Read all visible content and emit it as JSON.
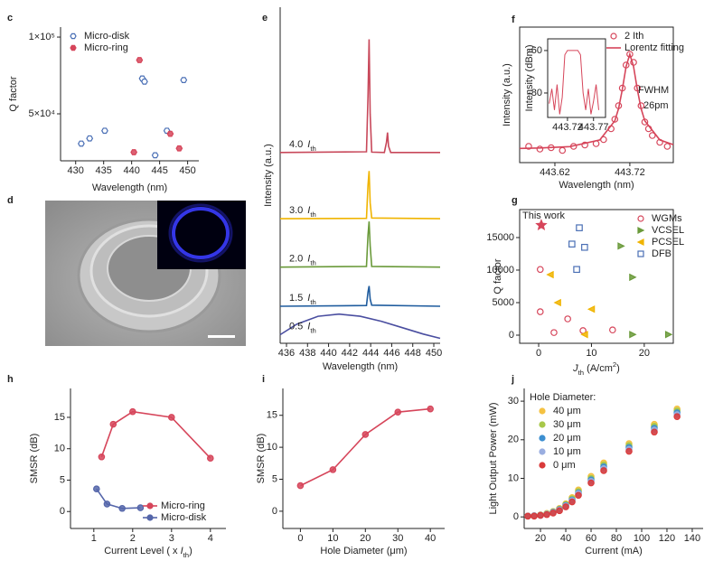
{
  "chart_data": [
    {
      "panel": "c",
      "type": "scatter",
      "xlabel": "Wavelength (nm)",
      "ylabel": "Q factor",
      "xlim": [
        427.3,
        452
      ],
      "xticks": [
        430,
        435,
        440,
        445,
        450
      ],
      "ylim": [
        19400,
        106500
      ],
      "yticks": [
        {
          "value": 50000,
          "label": "5×10⁴"
        },
        {
          "value": 100000,
          "label": "1×10⁵"
        }
      ],
      "legend": "upper left",
      "series": [
        {
          "name": "Micro-disk",
          "color": "#4a6fb5",
          "marker": "hexagon",
          "open": true,
          "x": [
            431,
            432.5,
            435.2,
            441.9,
            442.3,
            444.2,
            446.3,
            449.3
          ],
          "values": [
            30600,
            34000,
            39000,
            73000,
            71000,
            23000,
            39000,
            72000
          ]
        },
        {
          "name": "Micro-ring",
          "color": "#d6455a",
          "marker": "hexagon",
          "open": false,
          "x": [
            441.4,
            440.4,
            446.9,
            448.5
          ],
          "values": [
            85000,
            25000,
            37000,
            27500
          ]
        }
      ]
    },
    {
      "panel": "d",
      "type": "image"
    },
    {
      "panel": "e",
      "type": "line",
      "xlabel": "Wavelength (nm)",
      "ylabel": "Intensity (a.u.)",
      "xlim": [
        435.4,
        450.6
      ],
      "xticks": [
        436,
        438,
        440,
        442,
        444,
        446,
        448,
        450
      ],
      "ylim": [
        5.6,
        100
      ],
      "series_label_unit": [
        {
          "text": "I",
          "style": "italic"
        },
        {
          "text": "th",
          "style": "sub"
        }
      ],
      "series": [
        {
          "name": "4.0",
          "color": "#c8485a",
          "x": [
            435.4,
            443.6,
            443.75,
            443.85,
            443.95,
            444.1,
            445.3,
            445.5,
            445.6,
            445.7,
            445.9,
            450.6
          ],
          "values": [
            59.2,
            59.4,
            75,
            91,
            70,
            59.3,
            59.2,
            62,
            64.8,
            61,
            59.2,
            59.2
          ]
        },
        {
          "name": "3.0",
          "color": "#f0b400",
          "x": [
            435.4,
            443.6,
            443.75,
            443.85,
            443.95,
            444.1,
            450.6
          ],
          "values": [
            40.6,
            40.7,
            50,
            54,
            45,
            40.8,
            40.6
          ]
        },
        {
          "name": "2.0",
          "color": "#6a9a3a",
          "x": [
            435.4,
            443.6,
            443.75,
            443.85,
            443.95,
            444.1,
            450.6
          ],
          "values": [
            27,
            27.2,
            36,
            39.8,
            33,
            27.2,
            27
          ]
        },
        {
          "name": "1.5",
          "color": "#1f5c9e",
          "x": [
            435.4,
            443.6,
            443.75,
            443.85,
            443.95,
            444.1,
            450.6
          ],
          "values": [
            16,
            16.2,
            20,
            21.7,
            18,
            16.3,
            16
          ]
        },
        {
          "name": "0.5",
          "color": "#4a4ea0",
          "x": [
            435.4,
            437,
            439,
            441,
            443,
            445,
            447,
            449,
            450.6
          ],
          "values": [
            8,
            11,
            13.2,
            13.8,
            13.2,
            11.8,
            10,
            8.2,
            7
          ]
        }
      ]
    },
    {
      "panel": "f",
      "type": "line",
      "xlabel": "Wavelength (nm)",
      "ylabel": "Intensity (a.u.)",
      "xlim": [
        443.573,
        443.778
      ],
      "xticks": [
        443.62,
        443.72
      ],
      "ylim": [
        0,
        100
      ],
      "legend": "upper right",
      "annotation": [
        "FWHM",
        "26pm"
      ],
      "series": [
        {
          "name": "2 Ith",
          "color": "#d6455a",
          "marker": "circle",
          "open": true,
          "style": "markers",
          "x": [
            443.585,
            443.6,
            443.615,
            443.63,
            443.645,
            443.66,
            443.675,
            443.685,
            443.695,
            443.7,
            443.705,
            443.71,
            443.715,
            443.72,
            443.725,
            443.73,
            443.735,
            443.74,
            443.745,
            443.75,
            443.76,
            443.77
          ],
          "values": [
            12,
            10,
            11,
            9,
            12,
            13,
            14,
            17,
            25,
            32,
            42,
            55,
            72,
            80,
            74,
            55,
            42,
            30,
            25,
            20,
            15,
            12
          ]
        },
        {
          "name": "Lorentz fitting",
          "color": "#d6455a",
          "style": "line",
          "x": [
            443.573,
            443.6,
            443.64,
            443.68,
            443.7,
            443.705,
            443.71,
            443.715,
            443.72,
            443.725,
            443.73,
            443.735,
            443.74,
            443.76,
            443.778
          ],
          "values": [
            10.5,
            10.8,
            11.8,
            16.7,
            30.8,
            40,
            54,
            71,
            80,
            71,
            54,
            40,
            30.8,
            16.7,
            13.3
          ]
        }
      ]
    },
    {
      "type": "line",
      "ylabel": "Intensity (dBm)",
      "xlim": [
        443.682,
        443.793
      ],
      "xticks": [
        443.72,
        443.77
      ],
      "ylim": [
        -91.5,
        -54.5
      ],
      "yticks": [
        -60,
        -80
      ],
      "series": [
        {
          "color": "#d6455a",
          "x": [
            443.685,
            443.69,
            443.695,
            443.7,
            443.705,
            443.71,
            443.715,
            443.72,
            443.73,
            443.74,
            443.745,
            443.75,
            443.755,
            443.76,
            443.765,
            443.77,
            443.775,
            443.78
          ],
          "values": [
            -85,
            -78,
            -88,
            -76,
            -90,
            -82,
            -62,
            -60,
            -60,
            -60,
            -62,
            -80,
            -88,
            -78,
            -90,
            -84,
            -76,
            -88
          ]
        }
      ]
    },
    {
      "panel": "g",
      "type": "scatter",
      "xlabel": [
        {
          "text": "J",
          "style": "italic"
        },
        {
          "text": "th",
          "style": "sub"
        },
        {
          "text": " (A/cm"
        },
        {
          "text": "2",
          "style": "sup"
        },
        {
          "text": ")"
        }
      ],
      "ylabel": "Q factor",
      "xlim": [
        -3.6,
        25.5
      ],
      "xticks": [
        0,
        10,
        20
      ],
      "ylim": [
        -1250,
        19300
      ],
      "yticks": [
        0,
        5000,
        10000,
        15000
      ],
      "legend": "upper right",
      "highlight": {
        "label": "This work",
        "x": 0.5,
        "value": 16900,
        "color": "#d6455a"
      },
      "series": [
        {
          "name": "WGMs",
          "color": "#d6455a",
          "marker": "circle",
          "open": true,
          "x": [
            0.3,
            0.3,
            5.5,
            2.9,
            8.4,
            14
          ],
          "values": [
            10100,
            3600,
            2500,
            400,
            700,
            800
          ]
        },
        {
          "name": "VCSEL",
          "color": "#6a9a3a",
          "marker": "triangle-right",
          "open": false,
          "x": [
            15.6,
            17.8,
            17.8,
            24.6
          ],
          "values": [
            13700,
            8900,
            100,
            100
          ]
        },
        {
          "name": "PCSEL",
          "color": "#f0b400",
          "marker": "triangle-left",
          "open": false,
          "x": [
            2.2,
            3.6,
            10,
            8.7
          ],
          "values": [
            9300,
            5000,
            4000,
            100
          ]
        },
        {
          "name": "DFB",
          "color": "#4a6fb5",
          "marker": "square",
          "open": true,
          "x": [
            7.7,
            6.3,
            8.7,
            7.2
          ],
          "values": [
            16500,
            14000,
            13500,
            10100
          ]
        }
      ]
    },
    {
      "panel": "h",
      "type": "line",
      "xlabel": [
        {
          "text": "Current Level ( x "
        },
        {
          "text": "I",
          "style": "italic"
        },
        {
          "text": "th",
          "style": "sub"
        },
        {
          "text": ")"
        }
      ],
      "ylabel": "SMSR (dB)",
      "xlim": [
        0.4,
        4.4
      ],
      "xticks": [
        1,
        2,
        3,
        4
      ],
      "ylim": [
        -2.7,
        19.6
      ],
      "yticks": [
        0,
        5,
        10,
        15
      ],
      "legend": "lower right",
      "series": [
        {
          "name": "Micro-ring",
          "color": "#d6455a",
          "marker": "circle",
          "open": false,
          "x": [
            1.2,
            1.5,
            2,
            3,
            4
          ],
          "values": [
            8.7,
            13.9,
            15.9,
            15,
            8.5
          ]
        },
        {
          "name": "Micro-disk",
          "color": "#5566aa",
          "marker": "circle",
          "open": false,
          "x": [
            1.07,
            1.34,
            1.73,
            2.2
          ],
          "values": [
            3.6,
            1.2,
            0.5,
            0.6
          ]
        }
      ]
    },
    {
      "panel": "i",
      "type": "line",
      "xlabel": "Hole Diameter (μm)",
      "ylabel": "SMSR (dB)",
      "xlim": [
        -5.4,
        44.4
      ],
      "xticks": [
        0,
        10,
        20,
        30,
        40
      ],
      "ylim": [
        -2.7,
        19.2
      ],
      "yticks": [
        0,
        5,
        10,
        15
      ],
      "series": [
        {
          "color": "#d6455a",
          "marker": "circle",
          "open": false,
          "x": [
            0,
            10,
            20,
            30,
            40
          ],
          "values": [
            4,
            6.5,
            12,
            15.5,
            16
          ]
        }
      ]
    },
    {
      "panel": "j",
      "type": "scatter",
      "xlabel": "Current (mA)",
      "ylabel": "Light Output Power (mW)",
      "xlim": [
        7.1,
        148.6
      ],
      "xticks": [
        20,
        40,
        60,
        80,
        100,
        120,
        140
      ],
      "ylim": [
        -3,
        33.3
      ],
      "yticks": [
        0,
        10,
        20,
        30
      ],
      "legend": "upper left",
      "legend_title": "Hole Diameter:",
      "x": [
        10,
        15,
        20,
        25,
        30,
        35,
        40,
        45,
        50,
        60,
        70,
        90,
        110,
        128
      ],
      "series": [
        {
          "name": "40 μm",
          "color": "#f5c242",
          "marker": "circle",
          "open": false,
          "values": [
            0.2,
            0.3,
            0.5,
            0.9,
            1.4,
            2.2,
            3.4,
            5,
            7,
            10.5,
            14,
            19,
            24,
            28
          ]
        },
        {
          "name": "30 μm",
          "color": "#a8c84a",
          "marker": "circle",
          "open": false,
          "values": [
            0.2,
            0.3,
            0.5,
            0.8,
            1.3,
            2,
            3.2,
            4.7,
            6.6,
            10,
            13.5,
            18.5,
            23.5,
            27.5
          ]
        },
        {
          "name": "20 μm",
          "color": "#3c8fd0",
          "marker": "circle",
          "open": false,
          "values": [
            0.2,
            0.3,
            0.4,
            0.7,
            1.2,
            1.9,
            3,
            4.4,
            6.2,
            9.6,
            13,
            18,
            23,
            27
          ]
        },
        {
          "name": "10 μm",
          "color": "#9aaee0",
          "marker": "circle",
          "open": false,
          "values": [
            0.2,
            0.3,
            0.4,
            0.7,
            1.1,
            1.8,
            2.8,
            4.2,
            6,
            9.2,
            12.5,
            17.5,
            22.5,
            26.5
          ]
        },
        {
          "name": "0 μm",
          "color": "#d93a3a",
          "marker": "circle",
          "open": false,
          "values": [
            0.2,
            0.2,
            0.4,
            0.6,
            1,
            1.6,
            2.6,
            3.9,
            5.6,
            8.8,
            12,
            17,
            22,
            26
          ]
        }
      ]
    }
  ]
}
